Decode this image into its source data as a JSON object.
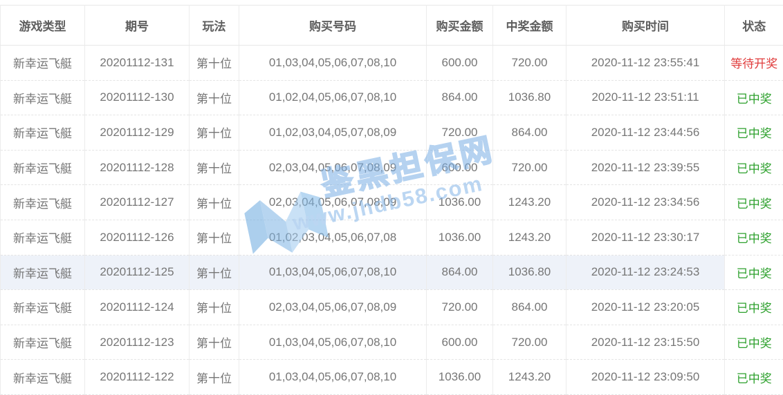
{
  "table": {
    "columns": [
      {
        "key": "game",
        "label": "游戏类型"
      },
      {
        "key": "period",
        "label": "期号"
      },
      {
        "key": "play",
        "label": "玩法"
      },
      {
        "key": "numbers",
        "label": "购买号码"
      },
      {
        "key": "amount",
        "label": "购买金额"
      },
      {
        "key": "win",
        "label": "中奖金额"
      },
      {
        "key": "time",
        "label": "购买时间"
      },
      {
        "key": "status",
        "label": "状态"
      }
    ],
    "status_colors": {
      "pending": "#e03c3c",
      "won": "#2ca02c"
    },
    "rows": [
      {
        "game": "新幸运飞艇",
        "period": "20201112-131",
        "play": "第十位",
        "numbers": "01,03,04,05,06,07,08,10",
        "amount": "600.00",
        "win": "720.00",
        "time": "2020-11-12 23:55:41",
        "status": "等待开奖",
        "state": "pending",
        "highlighted": false
      },
      {
        "game": "新幸运飞艇",
        "period": "20201112-130",
        "play": "第十位",
        "numbers": "01,02,04,05,06,07,08,10",
        "amount": "864.00",
        "win": "1036.80",
        "time": "2020-11-12 23:51:11",
        "status": "已中奖",
        "state": "won",
        "highlighted": false
      },
      {
        "game": "新幸运飞艇",
        "period": "20201112-129",
        "play": "第十位",
        "numbers": "01,02,03,04,05,07,08,09",
        "amount": "720.00",
        "win": "864.00",
        "time": "2020-11-12 23:44:56",
        "status": "已中奖",
        "state": "won",
        "highlighted": false
      },
      {
        "game": "新幸运飞艇",
        "period": "20201112-128",
        "play": "第十位",
        "numbers": "02,03,04,05,06,07,08,09",
        "amount": "600.00",
        "win": "720.00",
        "time": "2020-11-12 23:39:55",
        "status": "已中奖",
        "state": "won",
        "highlighted": false
      },
      {
        "game": "新幸运飞艇",
        "period": "20201112-127",
        "play": "第十位",
        "numbers": "02,03,04,05,06,07,08,09",
        "amount": "1036.00",
        "win": "1243.20",
        "time": "2020-11-12 23:34:56",
        "status": "已中奖",
        "state": "won",
        "highlighted": false
      },
      {
        "game": "新幸运飞艇",
        "period": "20201112-126",
        "play": "第十位",
        "numbers": "01,02,03,04,05,06,07,08",
        "amount": "1036.00",
        "win": "1243.20",
        "time": "2020-11-12 23:30:17",
        "status": "已中奖",
        "state": "won",
        "highlighted": false
      },
      {
        "game": "新幸运飞艇",
        "period": "20201112-125",
        "play": "第十位",
        "numbers": "01,03,04,05,06,07,08,10",
        "amount": "864.00",
        "win": "1036.80",
        "time": "2020-11-12 23:24:53",
        "status": "已中奖",
        "state": "won",
        "highlighted": true
      },
      {
        "game": "新幸运飞艇",
        "period": "20201112-124",
        "play": "第十位",
        "numbers": "02,03,04,05,06,07,08,09",
        "amount": "720.00",
        "win": "864.00",
        "time": "2020-11-12 23:20:05",
        "status": "已中奖",
        "state": "won",
        "highlighted": false
      },
      {
        "game": "新幸运飞艇",
        "period": "20201112-123",
        "play": "第十位",
        "numbers": "01,03,04,05,06,07,08,10",
        "amount": "600.00",
        "win": "720.00",
        "time": "2020-11-12 23:15:50",
        "status": "已中奖",
        "state": "won",
        "highlighted": false
      },
      {
        "game": "新幸运飞艇",
        "period": "20201112-122",
        "play": "第十位",
        "numbers": "01,03,04,05,06,07,08,10",
        "amount": "1036.00",
        "win": "1243.20",
        "time": "2020-11-12 23:09:50",
        "status": "已中奖",
        "state": "won",
        "highlighted": false
      }
    ]
  },
  "watermark": {
    "brand": "鉴黑担保网",
    "url": "www.jhdb58.com"
  }
}
